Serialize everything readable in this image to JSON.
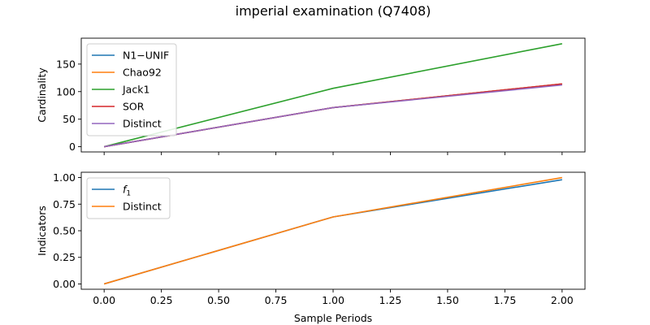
{
  "figure": {
    "title": "imperial examination (Q7408)"
  },
  "chart_data": [
    {
      "type": "line",
      "ylabel": "Cardinality",
      "xlabel": "",
      "x": [
        0,
        1,
        2
      ],
      "xlim": [
        -0.1,
        2.1
      ],
      "ylim": [
        -9.5,
        197
      ],
      "xticks": [
        0.0,
        0.25,
        0.5,
        0.75,
        1.0,
        1.25,
        1.5,
        1.75,
        2.0
      ],
      "yticks": [
        0,
        50,
        100,
        150
      ],
      "legend_position": "upper left",
      "grid": false,
      "series": [
        {
          "name": "N1−UNIF",
          "color": "#1f77b4",
          "values": [
            0,
            71,
            114
          ]
        },
        {
          "name": "Chao92",
          "color": "#ff7f0e",
          "values": [
            0,
            71,
            114
          ]
        },
        {
          "name": "Jack1",
          "color": "#2ca02c",
          "values": [
            0,
            106,
            187
          ]
        },
        {
          "name": "SOR",
          "color": "#d62728",
          "values": [
            0,
            71,
            114
          ]
        },
        {
          "name": "Distinct",
          "color": "#9467bd",
          "values": [
            0,
            71,
            112
          ]
        }
      ]
    },
    {
      "type": "line",
      "ylabel": "Indicators",
      "xlabel": "Sample Periods",
      "x": [
        0,
        1,
        2
      ],
      "xlim": [
        -0.1,
        2.1
      ],
      "ylim": [
        -0.05,
        1.05
      ],
      "xticks": [
        0.0,
        0.25,
        0.5,
        0.75,
        1.0,
        1.25,
        1.5,
        1.75,
        2.0
      ],
      "yticks": [
        0.0,
        0.25,
        0.5,
        0.75,
        1.0
      ],
      "legend_position": "upper left",
      "grid": false,
      "series": [
        {
          "name": "f1",
          "color": "#1f77b4",
          "values": [
            0.0,
            0.63,
            0.98
          ]
        },
        {
          "name": "Distinct",
          "color": "#ff7f0e",
          "values": [
            0.0,
            0.63,
            1.0
          ]
        }
      ]
    }
  ]
}
